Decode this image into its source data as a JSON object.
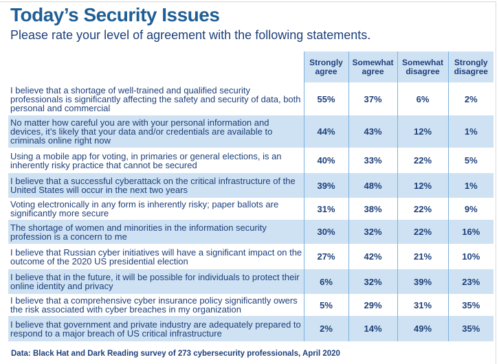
{
  "chart_data": {
    "type": "table",
    "title": "Today’s Security Issues",
    "subtitle": "Please rate your level of agreement with the following statements.",
    "columns": [
      "Strongly agree",
      "Somewhat agree",
      "Somewhat disagree",
      "Strongly disagree"
    ],
    "rows": [
      {
        "statement": "I believe that a shortage of well-trained and qualified security professionals is significantly affecting the safety and security of data, both personal and commercial",
        "values": [
          "55%",
          "37%",
          "6%",
          "2%"
        ]
      },
      {
        "statement": "No matter how careful you are with your personal information and devices, it’s likely that your data and/or credentials are available to criminals online right now",
        "values": [
          "44%",
          "43%",
          "12%",
          "1%"
        ]
      },
      {
        "statement": "Using a mobile app for voting, in primaries or general elections, is an inherently risky practice that cannot be secured",
        "values": [
          "40%",
          "33%",
          "22%",
          "5%"
        ]
      },
      {
        "statement": "I believe that a successful cyberattack on the critical infrastructure of the United States will occur in the next two years",
        "values": [
          "39%",
          "48%",
          "12%",
          "1%"
        ]
      },
      {
        "statement": "Voting electronically in any form is inherently risky; paper ballots are significantly more secure",
        "values": [
          "31%",
          "38%",
          "22%",
          "9%"
        ]
      },
      {
        "statement": "The shortage of women and minorities in the information security profession is a concern to me",
        "values": [
          "30%",
          "32%",
          "22%",
          "16%"
        ]
      },
      {
        "statement": "I believe that Russian cyber initiatives will have a significant impact on the outcome of the 2020 US presidential election",
        "values": [
          "27%",
          "42%",
          "21%",
          "10%"
        ]
      },
      {
        "statement": "I believe that in the future, it will be possible for individuals to protect their online identity and privacy",
        "values": [
          "6%",
          "32%",
          "39%",
          "23%"
        ]
      },
      {
        "statement": "I believe that a comprehensive cyber insurance policy significantly owers the risk associated with cyber breaches in my organization",
        "values": [
          "5%",
          "29%",
          "31%",
          "35%"
        ]
      },
      {
        "statement": "I believe that government and private industry are adequately prepared to respond to a major breach of US critical infrastructure",
        "values": [
          "2%",
          "14%",
          "49%",
          "35%"
        ]
      }
    ],
    "source": "Data: Black Hat and Dark Reading survey of 273 cybersecurity professionals, April 2020",
    "colors": {
      "title": "#1f5e94",
      "text": "#1d3f7a",
      "shade": "#cfe2f3",
      "rule": "#7ab2dd"
    }
  }
}
